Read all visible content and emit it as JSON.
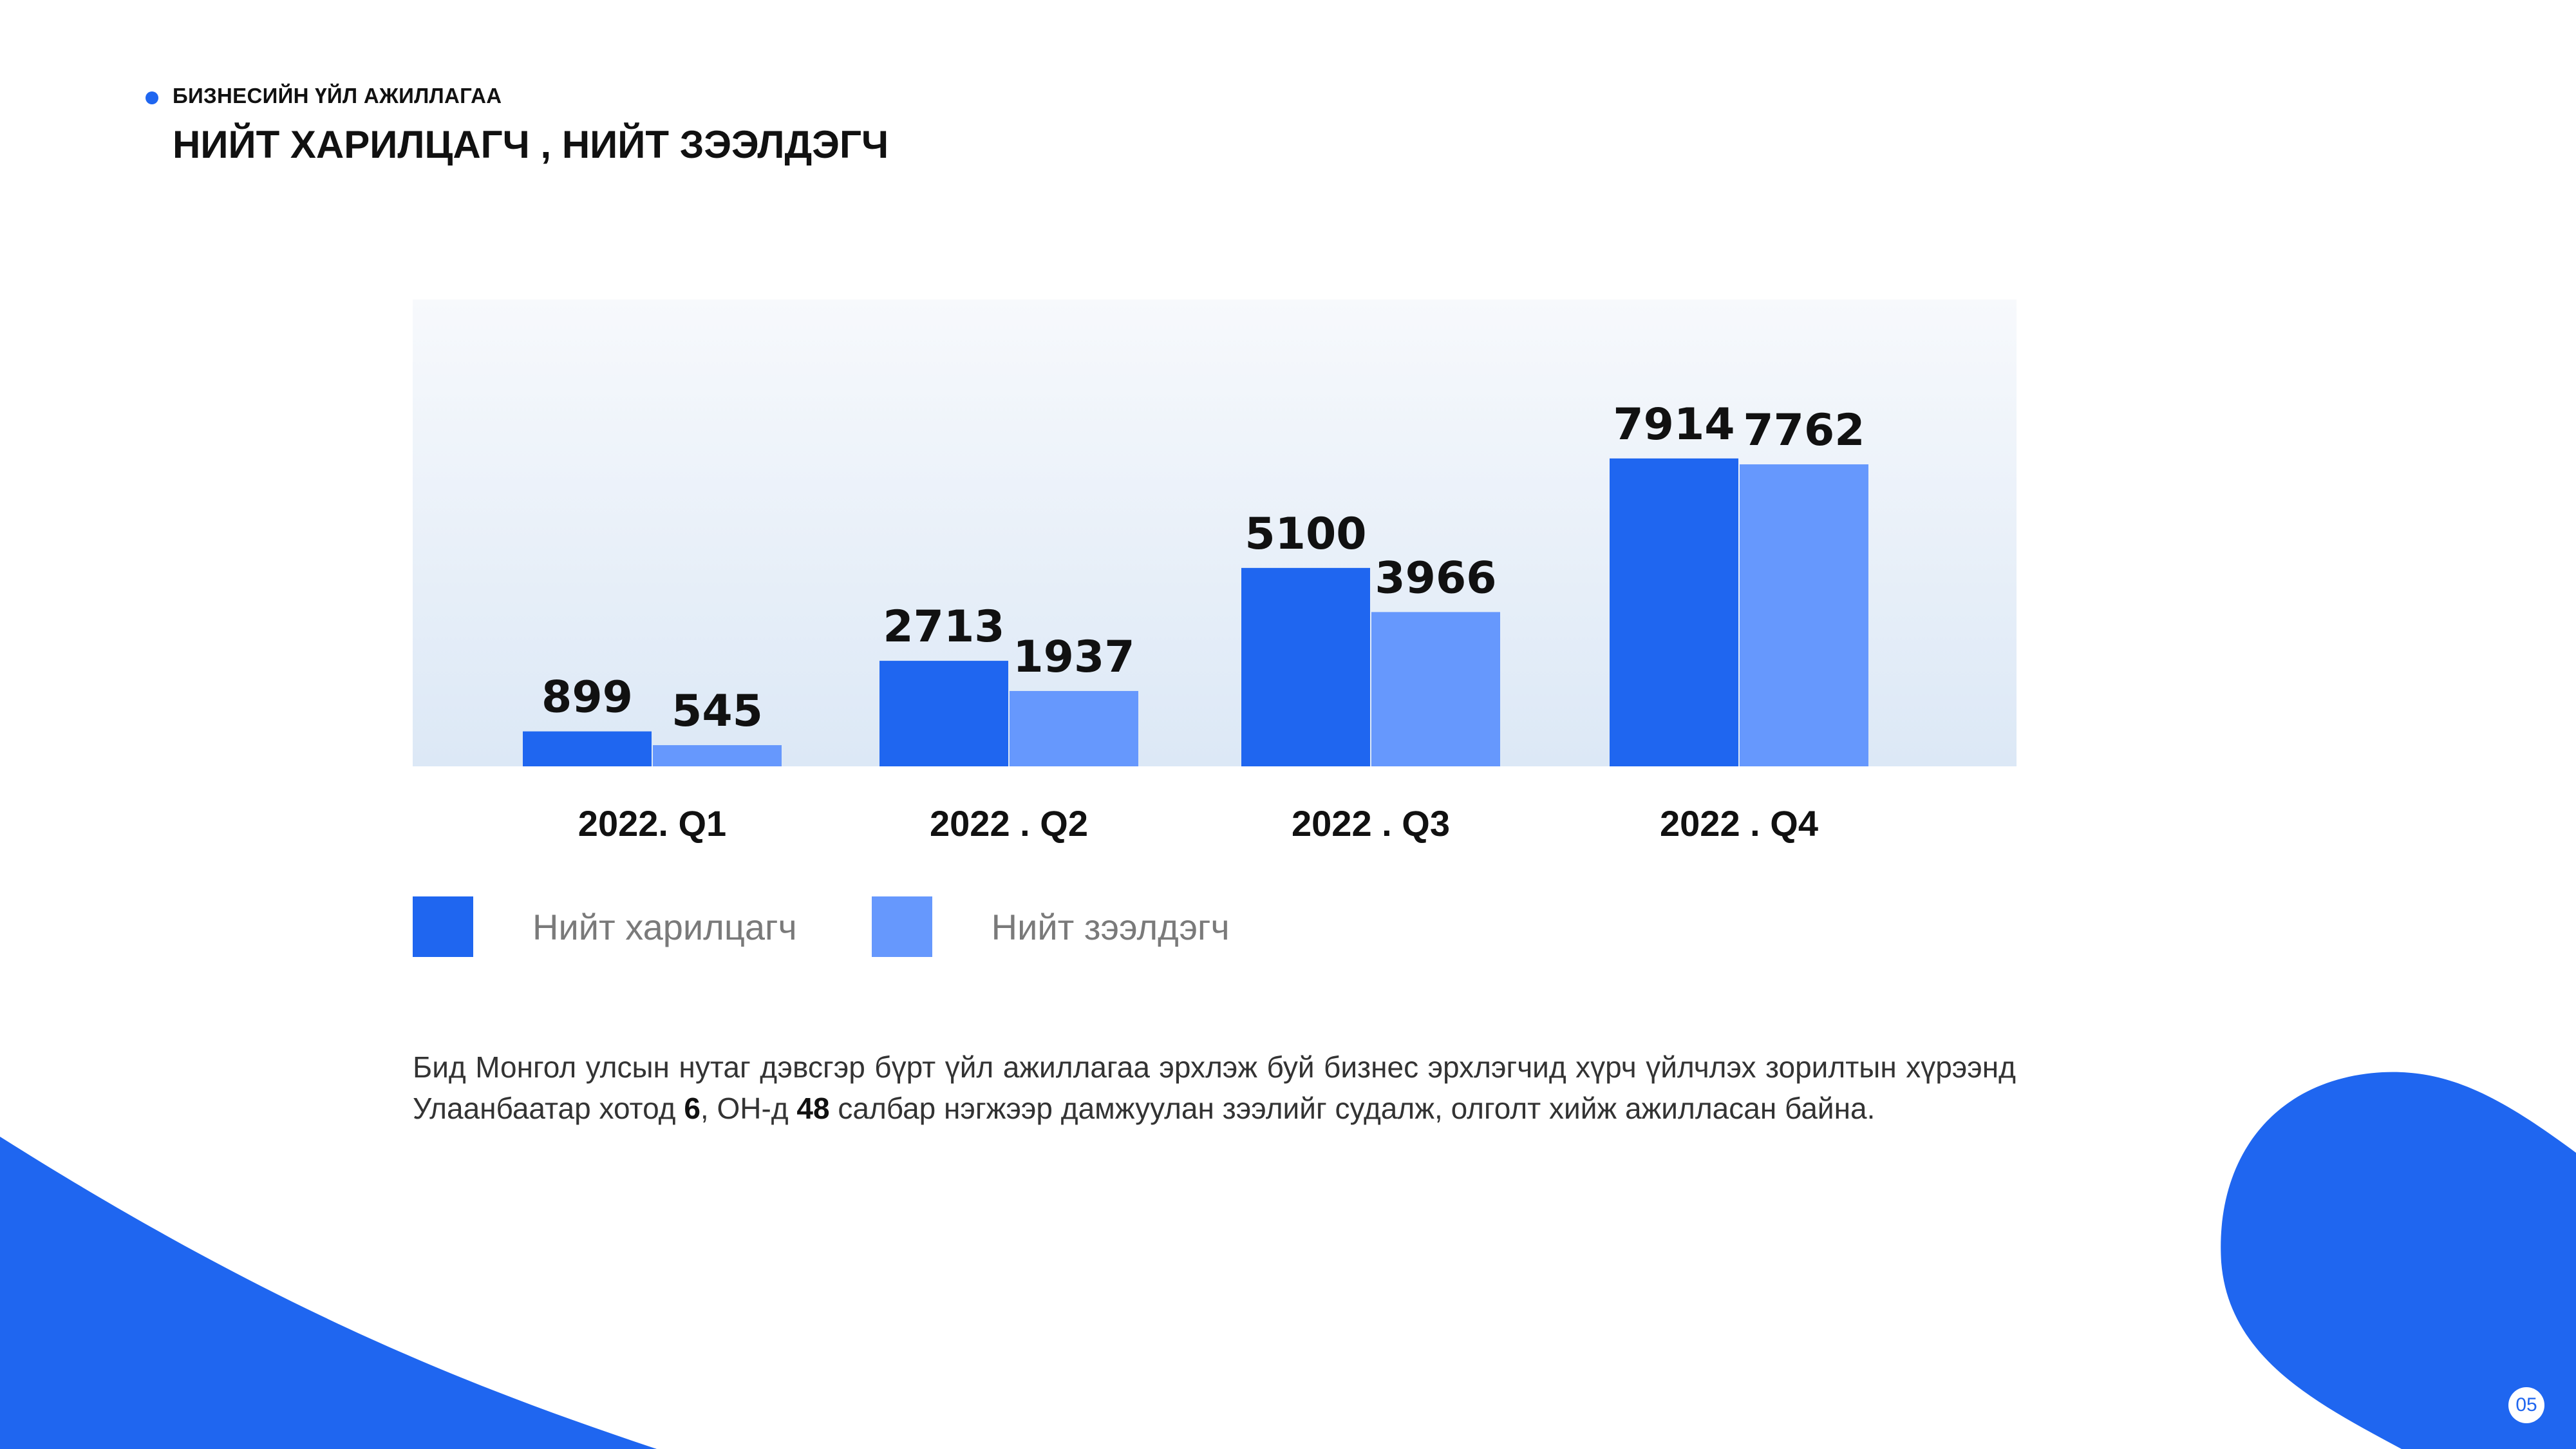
{
  "header": {
    "section_label": "БИЗНЕСИЙН ҮЙЛ АЖИЛЛАГАА",
    "title": "НИЙТ ХАРИЛЦАГЧ  , НИЙТ ЗЭЭЛДЭГЧ"
  },
  "colors": {
    "accent": "#1f66f0",
    "series_1": "#1f66f0",
    "series_2": "#6698fd",
    "plot_bg_top": "#f7f9fc",
    "plot_bg_bottom": "#dce8f6"
  },
  "chart_data": {
    "type": "bar",
    "categories": [
      "2022. Q1",
      "2022 . Q2",
      "2022 . Q3",
      "2022 . Q4"
    ],
    "series": [
      {
        "name": "Нийт харилцагч",
        "values": [
          899,
          2713,
          5100,
          7914
        ]
      },
      {
        "name": "Нийт зээлдэгч",
        "values": [
          545,
          1937,
          3966,
          7762
        ]
      }
    ],
    "data_labels": true,
    "ylim": [
      0,
      12000
    ],
    "grid": false,
    "legend_position": "bottom-left"
  },
  "body": {
    "text_part1": "Бид Монгол улсын нутаг дэвсгэр бүрт үйл ажиллагаа эрхлэж буй бизнес эрхлэгчид хүрч үйлчлэх зорилтын хүрээнд Улаанбаатар хотод ",
    "number_1": "6",
    "text_part2": ", ОН-д ",
    "number_2": "48",
    "text_part3": " салбар нэгжээр дамжуулан зээлийг судалж, олголт хийж ажилласан байна."
  },
  "footer": {
    "page_number": "05"
  }
}
